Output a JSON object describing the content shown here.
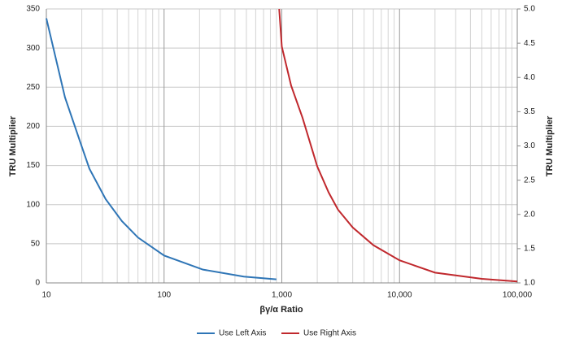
{
  "chart_data": {
    "type": "line",
    "xlabel": "βγ/α Ratio",
    "ylabel": "TRU Multiplier",
    "y2label": "TRU Multiplier",
    "xscale": "log",
    "xlim": [
      10,
      100000
    ],
    "xticks": [
      10,
      100,
      {
        "value": 1000,
        "label": "1,000"
      },
      {
        "value": 10000,
        "label": "10,000"
      },
      {
        "value": 100000,
        "label": "100,000"
      }
    ],
    "x_minor_ticks": [
      20,
      30,
      40,
      50,
      60,
      70,
      80,
      90,
      200,
      300,
      400,
      500,
      600,
      700,
      800,
      900,
      2000,
      3000,
      4000,
      5000,
      6000,
      7000,
      8000,
      9000,
      20000,
      30000,
      40000,
      50000,
      60000,
      70000,
      80000,
      90000
    ],
    "ylim": [
      0,
      350
    ],
    "yticks": [
      0,
      50,
      100,
      150,
      200,
      250,
      300,
      350
    ],
    "y2lim": [
      1,
      5
    ],
    "y2ticks": [
      {
        "value": 1,
        "label": "1.0"
      },
      1.5,
      {
        "value": 2,
        "label": "2.0"
      },
      2.5,
      {
        "value": 3,
        "label": "3.0"
      },
      3.5,
      {
        "value": 4,
        "label": "4.0"
      },
      4.5,
      {
        "value": 5,
        "label": "5.0"
      }
    ],
    "grid": true,
    "legend": "bottom",
    "series": [
      {
        "name": "Use Left Axis",
        "color": "#2e75b6",
        "x": [
          10,
          14.4,
          19.8,
          23.2,
          31.9,
          43.8,
          60,
          100,
          214,
          475,
          900
        ],
        "values": [
          338,
          237,
          176,
          146,
          107,
          79,
          58,
          35,
          17,
          8,
          4.5
        ]
      },
      {
        "name": "Use Right Axis",
        "color": "#c0282d",
        "axis": "y2",
        "x": [
          950,
          1000,
          1200,
          1500,
          2000,
          2500,
          3000,
          4000,
          6000,
          10000,
          20000,
          50000,
          100000
        ],
        "values": [
          5.0,
          4.45,
          3.88,
          3.41,
          2.7,
          2.32,
          2.07,
          1.81,
          1.55,
          1.33,
          1.15,
          1.06,
          1.02
        ]
      }
    ]
  }
}
